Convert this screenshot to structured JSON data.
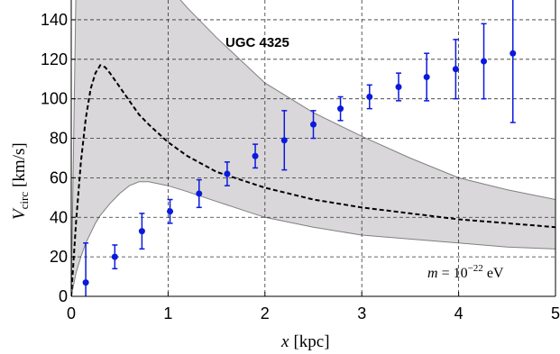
{
  "chart_data": {
    "type": "scatter",
    "title": "UGC 4325",
    "xlabel": {
      "main": "x",
      "unit": "[kpc]"
    },
    "ylabel": {
      "main": "V",
      "sub": "circ",
      "unit": "[km/s]"
    },
    "xlim": [
      0,
      5
    ],
    "ylim": [
      0,
      150
    ],
    "xticks": [
      0,
      1,
      2,
      3,
      4,
      5
    ],
    "yticks": [
      0,
      20,
      40,
      60,
      80,
      100,
      120,
      140
    ],
    "grid": true,
    "annotation": {
      "prefix": "m",
      "eq": " = 10",
      "exp": "−22",
      "unit": " eV"
    },
    "colors": {
      "points": "#0a1adb",
      "curve": "#000000",
      "band": "#d9d7d9",
      "band_edge": "#808080"
    },
    "series": [
      {
        "type": "errorbar",
        "x": [
          0.15,
          0.45,
          0.73,
          1.02,
          1.32,
          1.61,
          1.9,
          2.2,
          2.5,
          2.78,
          3.08,
          3.38,
          3.67,
          3.97,
          4.26,
          4.56
        ],
        "y": [
          7,
          20,
          33,
          43,
          52,
          62,
          71,
          79,
          87,
          95,
          101,
          106,
          111,
          115,
          119,
          123
        ],
        "yerr": [
          20,
          6,
          9,
          6,
          7,
          6,
          6,
          15,
          7,
          6,
          6,
          7,
          12,
          15,
          19,
          35
        ]
      },
      {
        "type": "line",
        "style": "dashed",
        "x": [
          0,
          0.05,
          0.1,
          0.15,
          0.2,
          0.25,
          0.3,
          0.35,
          0.4,
          0.5,
          0.6,
          0.7,
          0.8,
          1.0,
          1.2,
          1.5,
          2.0,
          2.5,
          3.0,
          3.5,
          4.0,
          4.5,
          5.0
        ],
        "y": [
          0,
          38,
          68,
          90,
          105,
          113,
          117,
          116,
          113,
          106,
          99,
          92,
          87,
          78,
          71,
          63,
          55,
          49,
          45,
          42,
          39,
          37,
          35
        ]
      },
      {
        "type": "band",
        "x": [
          0,
          0.05,
          0.1,
          0.15,
          0.2,
          0.25,
          0.3,
          0.4,
          0.5,
          0.6,
          0.7,
          0.8,
          1.0,
          1.2,
          1.5,
          2.0,
          2.5,
          3.0,
          3.5,
          4.0,
          4.5,
          5.0
        ],
        "lower": [
          0,
          12,
          20,
          27,
          32,
          37,
          41,
          47,
          52,
          56,
          58,
          58,
          56,
          53,
          48,
          40,
          35,
          31,
          29,
          27,
          25,
          24
        ],
        "upper": [
          0,
          160,
          160,
          160,
          160,
          160,
          160,
          160,
          160,
          160,
          160,
          160,
          157,
          146,
          131,
          108,
          93,
          81,
          70,
          60,
          54,
          49
        ]
      }
    ]
  }
}
